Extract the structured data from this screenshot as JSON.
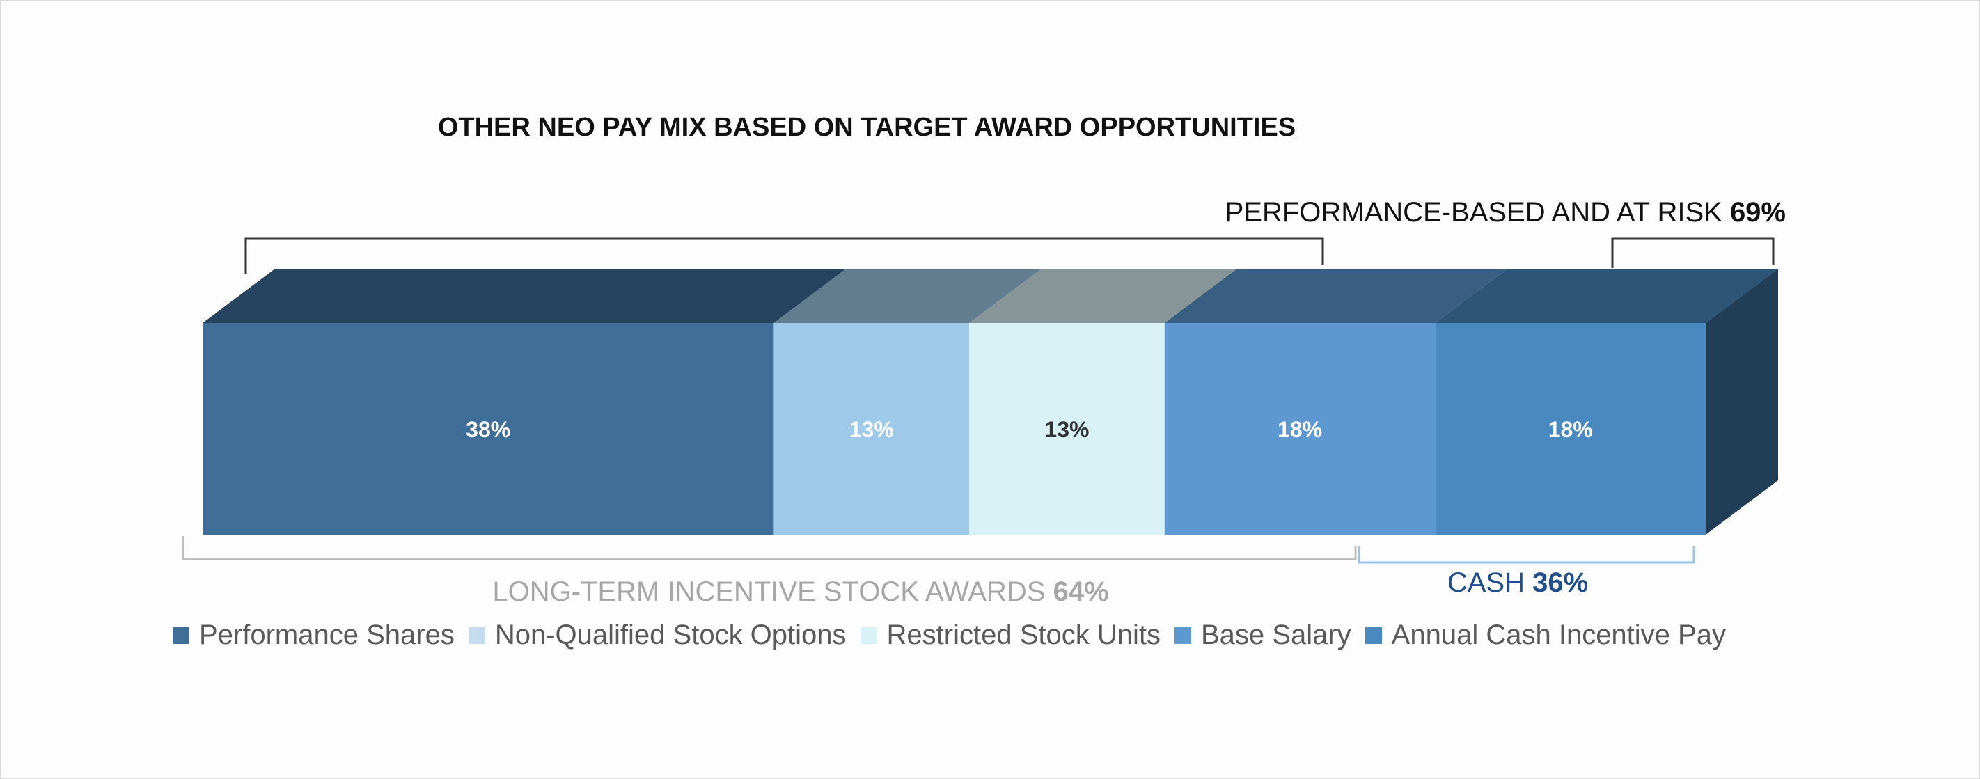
{
  "chart_data": {
    "type": "bar",
    "title": "OTHER NEO PAY MIX BASED ON TARGET AWARD OPPORTUNITIES",
    "orientation": "horizontal-stacked-100",
    "categories": [
      "Performance Shares",
      "Non-Qualified Stock Options",
      "Restricted Stock Units",
      "Base Salary",
      "Annual Cash Incentive Pay"
    ],
    "series": [
      {
        "name": "Performance Shares",
        "value": 38,
        "label": "38%",
        "color": "#3f6e99",
        "label_color": "#ffffff"
      },
      {
        "name": "Non-Qualified Stock Options",
        "value": 13,
        "label": "13%",
        "color": "#9ec9e8",
        "label_color": "#ffffff"
      },
      {
        "name": "Restricted Stock Units",
        "value": 13,
        "label": "13%",
        "color": "#d8f2f5",
        "label_color": "#333333"
      },
      {
        "name": "Base Salary",
        "value": 18,
        "label": "18%",
        "color": "#5e98d1",
        "label_color": "#ffffff"
      },
      {
        "name": "Annual Cash Incentive Pay",
        "value": 18,
        "label": "18%",
        "color": "#4a89bf",
        "label_color": "#ffffff"
      }
    ],
    "annotations": {
      "performance": {
        "text": "PERFORMANCE-BASED AND AT RISK ",
        "value": "69%"
      },
      "long_term": {
        "text": "LONG-TERM INCENTIVE STOCK AWARDS ",
        "value": "64%"
      },
      "cash": {
        "text": "CASH ",
        "value": "36%"
      }
    },
    "legend": [
      {
        "label": "Performance Shares",
        "color": "#3f6e99"
      },
      {
        "label": "Non-Qualified Stock Options",
        "color": "#c5dcef"
      },
      {
        "label": "Restricted Stock Units",
        "color": "#d8f2f5"
      },
      {
        "label": "Base Salary",
        "color": "#5e98d1"
      },
      {
        "label": "Annual Cash Incentive Pay",
        "color": "#4a89bf"
      }
    ]
  }
}
